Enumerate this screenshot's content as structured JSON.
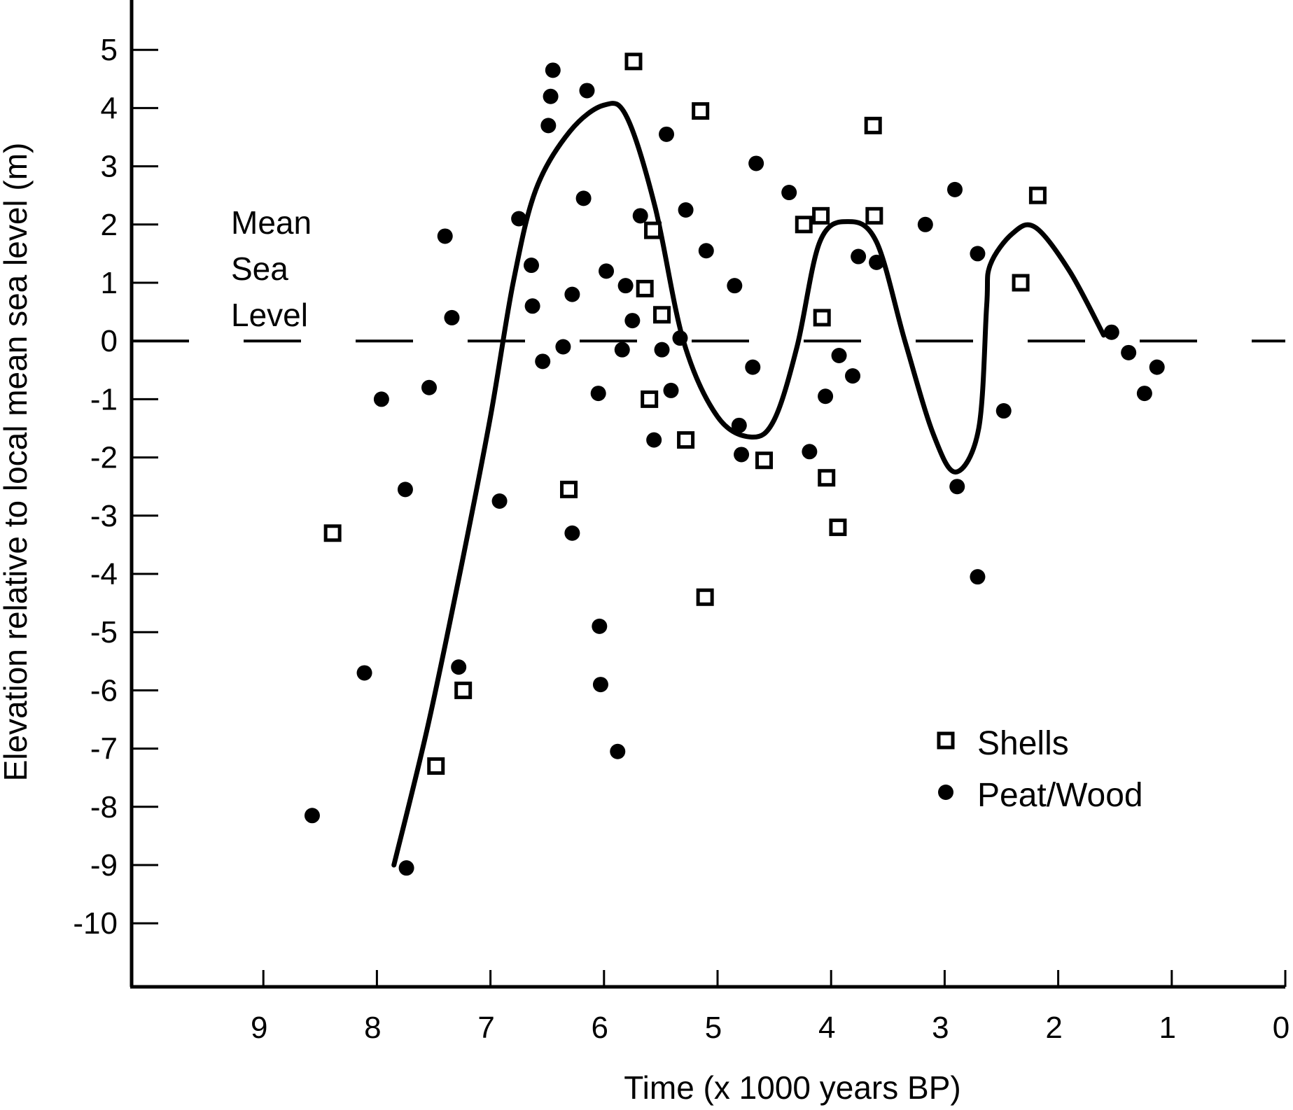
{
  "chart_data": {
    "type": "scatter",
    "xlabel": "Time (x 1000 years BP)",
    "ylabel": "Elevation relative to local mean sea level (m)",
    "xlim": [
      10,
      0
    ],
    "ylim": [
      -11,
      6
    ],
    "x_reversed": true,
    "xticks": [
      9,
      8,
      7,
      6,
      5,
      4,
      3,
      2,
      1,
      0
    ],
    "yticks": [
      5,
      4,
      3,
      2,
      1,
      0,
      -1,
      -2,
      -3,
      -4,
      -5,
      -6,
      -7,
      -8,
      -9,
      -10
    ],
    "grid": false,
    "annotation": {
      "lines": [
        "Mean",
        "Sea",
        "Level"
      ]
    },
    "mean_sea_level": {
      "y": 0,
      "style": "dashed"
    },
    "legend": {
      "position": "bottom-right",
      "entries": [
        "Shells",
        "Peat/Wood"
      ]
    },
    "series": [
      {
        "name": "Shells",
        "marker": "open-square",
        "points": [
          [
            8.39,
            -3.3
          ],
          [
            7.48,
            -7.3
          ],
          [
            7.24,
            -6.0
          ],
          [
            6.31,
            -2.55
          ],
          [
            5.74,
            4.8
          ],
          [
            5.64,
            0.9
          ],
          [
            5.6,
            -1.0
          ],
          [
            5.57,
            1.9
          ],
          [
            5.49,
            0.45
          ],
          [
            5.28,
            -1.7
          ],
          [
            5.15,
            3.95
          ],
          [
            5.11,
            -4.4
          ],
          [
            4.59,
            -2.05
          ],
          [
            4.24,
            2.0
          ],
          [
            4.09,
            2.15
          ],
          [
            4.08,
            0.4
          ],
          [
            4.04,
            -2.35
          ],
          [
            3.94,
            -3.2
          ],
          [
            3.63,
            3.7
          ],
          [
            3.62,
            2.15
          ],
          [
            2.33,
            1.0
          ],
          [
            2.18,
            2.5
          ]
        ]
      },
      {
        "name": "Peat/Wood",
        "marker": "filled-circle",
        "points": [
          [
            8.57,
            -8.15
          ],
          [
            8.11,
            -5.7
          ],
          [
            7.96,
            -1.0
          ],
          [
            7.75,
            -2.55
          ],
          [
            7.74,
            -9.05
          ],
          [
            7.54,
            -0.8
          ],
          [
            7.4,
            1.8
          ],
          [
            7.34,
            0.4
          ],
          [
            7.28,
            -5.6
          ],
          [
            6.92,
            -2.75
          ],
          [
            6.75,
            2.1
          ],
          [
            6.64,
            1.3
          ],
          [
            6.63,
            0.6
          ],
          [
            6.54,
            -0.35
          ],
          [
            6.49,
            3.7
          ],
          [
            6.47,
            4.2
          ],
          [
            6.45,
            4.65
          ],
          [
            6.36,
            -0.1
          ],
          [
            6.28,
            0.8
          ],
          [
            6.28,
            -3.3
          ],
          [
            6.18,
            2.45
          ],
          [
            6.15,
            4.3
          ],
          [
            6.05,
            -0.9
          ],
          [
            6.04,
            -4.9
          ],
          [
            6.03,
            -5.9
          ],
          [
            5.98,
            1.2
          ],
          [
            5.88,
            -7.05
          ],
          [
            5.84,
            -0.15
          ],
          [
            5.81,
            0.95
          ],
          [
            5.75,
            0.35
          ],
          [
            5.68,
            2.15
          ],
          [
            5.56,
            -1.7
          ],
          [
            5.49,
            -0.15
          ],
          [
            5.45,
            3.55
          ],
          [
            5.41,
            -0.85
          ],
          [
            5.33,
            0.05
          ],
          [
            5.28,
            2.25
          ],
          [
            5.1,
            1.55
          ],
          [
            4.85,
            0.95
          ],
          [
            4.81,
            -1.45
          ],
          [
            4.79,
            -1.95
          ],
          [
            4.69,
            -0.45
          ],
          [
            4.66,
            3.05
          ],
          [
            4.37,
            2.55
          ],
          [
            4.19,
            -1.9
          ],
          [
            4.05,
            -0.95
          ],
          [
            3.93,
            -0.25
          ],
          [
            3.81,
            -0.6
          ],
          [
            3.76,
            1.45
          ],
          [
            3.6,
            1.35
          ],
          [
            3.17,
            2.0
          ],
          [
            2.91,
            2.6
          ],
          [
            2.89,
            -2.5
          ],
          [
            2.71,
            1.5
          ],
          [
            2.71,
            -4.05
          ],
          [
            2.48,
            -1.2
          ],
          [
            1.53,
            0.15
          ],
          [
            1.38,
            -0.2
          ],
          [
            1.24,
            -0.9
          ],
          [
            1.13,
            -0.45
          ]
        ]
      }
    ],
    "curve": {
      "style": "smooth",
      "points": [
        [
          7.85,
          -9.0
        ],
        [
          7.55,
          -6.6
        ],
        [
          7.25,
          -3.8
        ],
        [
          7.0,
          -1.3
        ],
        [
          6.8,
          1.0
        ],
        [
          6.6,
          2.6
        ],
        [
          6.3,
          3.6
        ],
        [
          6.0,
          4.05
        ],
        [
          5.8,
          3.85
        ],
        [
          5.55,
          2.3
        ],
        [
          5.3,
          0.0
        ],
        [
          5.0,
          -1.3
        ],
        [
          4.7,
          -1.65
        ],
        [
          4.5,
          -1.35
        ],
        [
          4.3,
          -0.1
        ],
        [
          4.1,
          1.7
        ],
        [
          3.85,
          2.05
        ],
        [
          3.6,
          1.7
        ],
        [
          3.35,
          0.0
        ],
        [
          3.1,
          -1.6
        ],
        [
          2.9,
          -2.25
        ],
        [
          2.7,
          -1.5
        ],
        [
          2.63,
          0.6
        ],
        [
          2.6,
          1.3
        ],
        [
          2.4,
          1.85
        ],
        [
          2.2,
          1.95
        ],
        [
          1.9,
          1.2
        ],
        [
          1.6,
          0.1
        ]
      ]
    }
  }
}
